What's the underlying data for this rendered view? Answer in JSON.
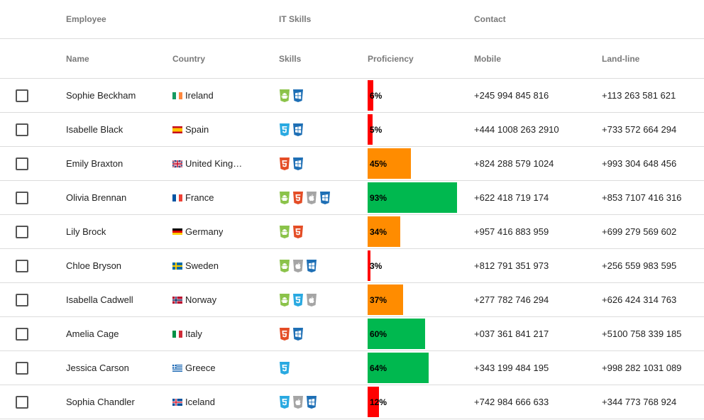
{
  "header": {
    "groups": {
      "employee": "Employee",
      "it_skills": "IT Skills",
      "contact": "Contact"
    },
    "columns": {
      "name": "Name",
      "country": "Country",
      "skills": "Skills",
      "proficiency": "Proficiency",
      "mobile": "Mobile",
      "landline": "Land-line"
    }
  },
  "colors": {
    "low": "#ff0000",
    "medium": "#ff8c00",
    "high": "#00b84f"
  },
  "rows": [
    {
      "name": "Sophie Beckham",
      "country": "Ireland",
      "flag": "ireland",
      "skills": [
        "android",
        "windows"
      ],
      "proficiency": 6,
      "proficiency_label": "6%",
      "mobile": "+245 994 845 816",
      "landline": "+113 263 581 621"
    },
    {
      "name": "Isabelle Black",
      "country": "Spain",
      "flag": "spain",
      "skills": [
        "css3",
        "windows"
      ],
      "proficiency": 5,
      "proficiency_label": "5%",
      "mobile": "+444 1008 263 2910",
      "landline": "+733 572 664 294"
    },
    {
      "name": "Emily Braxton",
      "country": "United Kingdom",
      "flag": "uk",
      "skills": [
        "html5",
        "windows"
      ],
      "proficiency": 45,
      "proficiency_label": "45%",
      "mobile": "+824 288 579 1024",
      "landline": "+993 304 648 456"
    },
    {
      "name": "Olivia Brennan",
      "country": "France",
      "flag": "france",
      "skills": [
        "android",
        "html5",
        "mac",
        "windows"
      ],
      "proficiency": 93,
      "proficiency_label": "93%",
      "mobile": "+622 418 719 174",
      "landline": "+853 7107 416 316"
    },
    {
      "name": "Lily Brock",
      "country": "Germany",
      "flag": "germany",
      "skills": [
        "android",
        "html5"
      ],
      "proficiency": 34,
      "proficiency_label": "34%",
      "mobile": "+957 416 883 959",
      "landline": "+699 279 569 602"
    },
    {
      "name": "Chloe Bryson",
      "country": "Sweden",
      "flag": "sweden",
      "skills": [
        "android",
        "mac",
        "windows"
      ],
      "proficiency": 3,
      "proficiency_label": "3%",
      "mobile": "+812 791 351 973",
      "landline": "+256 559 983 595"
    },
    {
      "name": "Isabella Cadwell",
      "country": "Norway",
      "flag": "norway",
      "skills": [
        "android",
        "css3",
        "mac"
      ],
      "proficiency": 37,
      "proficiency_label": "37%",
      "mobile": "+277 782 746 294",
      "landline": "+626 424 314 763"
    },
    {
      "name": "Amelia Cage",
      "country": "Italy",
      "flag": "italy",
      "skills": [
        "html5",
        "windows"
      ],
      "proficiency": 60,
      "proficiency_label": "60%",
      "mobile": "+037 361 841 217",
      "landline": "+5100 758 339 185"
    },
    {
      "name": "Jessica Carson",
      "country": "Greece",
      "flag": "greece",
      "skills": [
        "css3"
      ],
      "proficiency": 64,
      "proficiency_label": "64%",
      "mobile": "+343 199 484 195",
      "landline": "+998 282 1031 089"
    },
    {
      "name": "Sophia Chandler",
      "country": "Iceland",
      "flag": "iceland",
      "skills": [
        "css3",
        "mac",
        "windows"
      ],
      "proficiency": 12,
      "proficiency_label": "12%",
      "mobile": "+742 984 666 633",
      "landline": "+344 773 768 924"
    }
  ]
}
